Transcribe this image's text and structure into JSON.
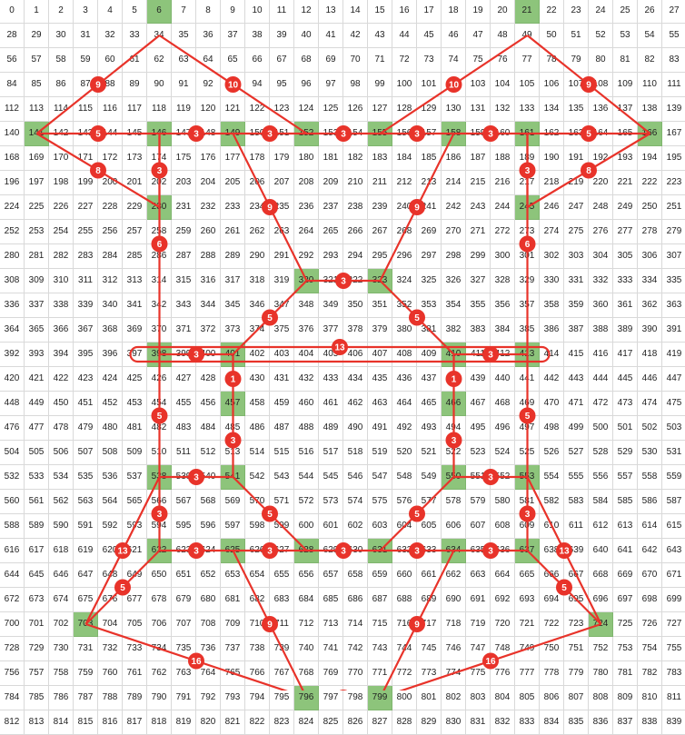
{
  "grid": {
    "columns": 28,
    "rows": 30,
    "start": 0,
    "highlighted": [
      6,
      21,
      141,
      146,
      149,
      152,
      155,
      158,
      161,
      166,
      230,
      245,
      320,
      323,
      398,
      401,
      410,
      413,
      457,
      466,
      538,
      541,
      550,
      553,
      622,
      625,
      628,
      631,
      634,
      637,
      703,
      724,
      796,
      799
    ]
  },
  "colors": {
    "grid_line": "#d9d9d9",
    "highlight": "#8dc47b",
    "connector": "#e8332a",
    "badge": "#e8332a",
    "badge_text": "#ffffff"
  },
  "connections": [
    {
      "from": 141,
      "to": 34,
      "label": "9"
    },
    {
      "from": 34,
      "to": 152,
      "label": "10"
    },
    {
      "from": 155,
      "to": 49,
      "label": "10"
    },
    {
      "from": 49,
      "to": 166,
      "label": "9"
    },
    {
      "from": 141,
      "to": 146,
      "label": "5"
    },
    {
      "from": 146,
      "to": 149,
      "label": "3"
    },
    {
      "from": 149,
      "to": 152,
      "label": "3"
    },
    {
      "from": 152,
      "to": 155,
      "label": "3"
    },
    {
      "from": 155,
      "to": 158,
      "label": "3"
    },
    {
      "from": 158,
      "to": 161,
      "label": "3"
    },
    {
      "from": 161,
      "to": 166,
      "label": "5"
    },
    {
      "from": 146,
      "to": 230,
      "label": "3"
    },
    {
      "from": 161,
      "to": 245,
      "label": "3"
    },
    {
      "from": 141,
      "to": 230,
      "label": "8"
    },
    {
      "from": 166,
      "to": 245,
      "label": "8"
    },
    {
      "from": 149,
      "to": 320,
      "label": "9"
    },
    {
      "from": 158,
      "to": 323,
      "label": "9"
    },
    {
      "from": 320,
      "to": 323,
      "label": "3"
    },
    {
      "from": 146,
      "to": 398,
      "label": "6"
    },
    {
      "from": 161,
      "to": 413,
      "label": "6"
    },
    {
      "from": 320,
      "to": 401,
      "label": "5"
    },
    {
      "from": 323,
      "to": 410,
      "label": "5"
    },
    {
      "from": 398,
      "to": 401,
      "label": "3"
    },
    {
      "from": 410,
      "to": 413,
      "label": "3"
    },
    {
      "from": 401,
      "to": 457,
      "label": "1"
    },
    {
      "from": 410,
      "to": 466,
      "label": "1"
    },
    {
      "from": 398,
      "to": 538,
      "label": "5"
    },
    {
      "from": 413,
      "to": 553,
      "label": "5"
    },
    {
      "from": 457,
      "to": 541,
      "label": "3"
    },
    {
      "from": 466,
      "to": 550,
      "label": "3"
    },
    {
      "from": 538,
      "to": 541,
      "label": "3"
    },
    {
      "from": 550,
      "to": 553,
      "label": "3"
    },
    {
      "from": 541,
      "to": 628,
      "label": "5"
    },
    {
      "from": 550,
      "to": 631,
      "label": "5"
    },
    {
      "from": 538,
      "to": 622,
      "label": "3"
    },
    {
      "from": 553,
      "to": 637,
      "label": "3"
    },
    {
      "from": 622,
      "to": 625,
      "label": "3"
    },
    {
      "from": 625,
      "to": 628,
      "label": "3"
    },
    {
      "from": 628,
      "to": 631,
      "label": "3"
    },
    {
      "from": 631,
      "to": 634,
      "label": "3"
    },
    {
      "from": 634,
      "to": 637,
      "label": "3"
    },
    {
      "from": 538,
      "to": 703,
      "label": "13"
    },
    {
      "from": 553,
      "to": 724,
      "label": "13"
    },
    {
      "from": 622,
      "to": 703,
      "label": "5"
    },
    {
      "from": 637,
      "to": 724,
      "label": "5"
    },
    {
      "from": 625,
      "to": 796,
      "label": "9"
    },
    {
      "from": 634,
      "to": 799,
      "label": "9"
    },
    {
      "from": 796,
      "to": 799,
      "label": "3"
    },
    {
      "from": 703,
      "to": 796,
      "label": "16"
    },
    {
      "from": 724,
      "to": 799,
      "label": "16"
    }
  ],
  "loop": {
    "from": 398,
    "to": 413,
    "label": "13"
  }
}
